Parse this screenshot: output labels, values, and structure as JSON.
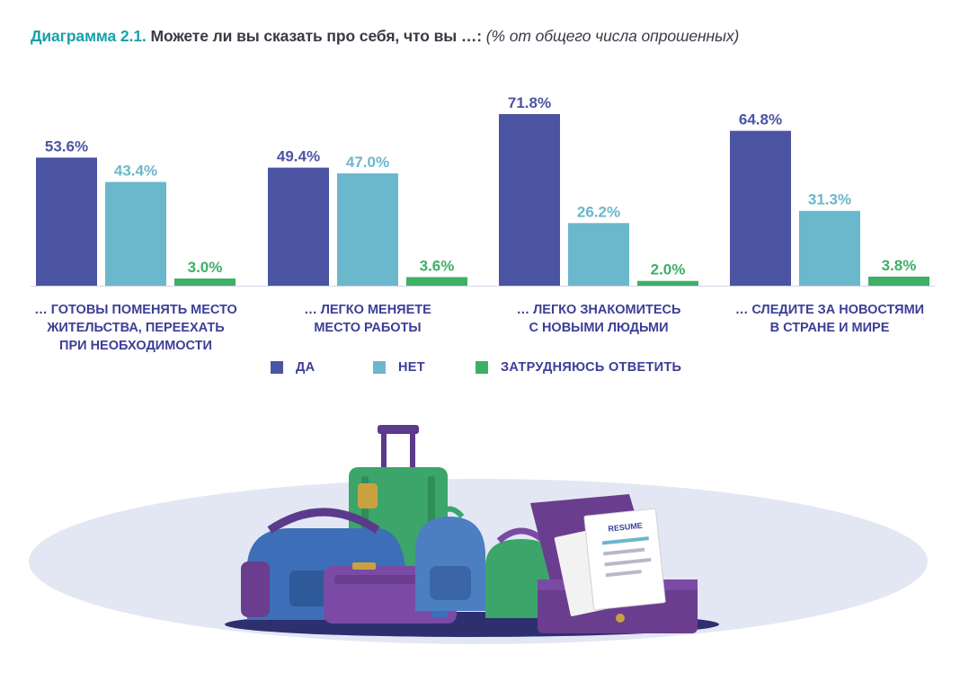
{
  "title": {
    "number": "Диаграмма 2.1.",
    "question": "Можете ли вы сказать про себя, что вы …:",
    "note": "(% от общего числа опрошенных)"
  },
  "colors": {
    "yes": "#4b54a3",
    "no": "#6bb7cc",
    "hard": "#3fae67",
    "label": "#3c3f96"
  },
  "chart_data": {
    "type": "bar",
    "title": "Можете ли вы сказать про себя, что вы …: (% от общего числа опрошенных)",
    "categories": [
      [
        "… ГОТОВЫ ПОМЕНЯТЬ МЕСТО",
        "ЖИТЕЛЬСТВА, ПЕРЕЕХАТЬ",
        "ПРИ НЕОБХОДИМОСТИ"
      ],
      [
        "… ЛЕГКО МЕНЯЕТЕ",
        "МЕСТО РАБОТЫ"
      ],
      [
        "… ЛЕГКО ЗНАКОМИТЕСЬ",
        "С НОВЫМИ ЛЮДЬМИ"
      ],
      [
        "… СЛЕДИТЕ ЗА НОВОСТЯМИ",
        "В СТРАНЕ И МИРЕ"
      ]
    ],
    "series": [
      {
        "name": "ДА",
        "color": "#4b54a3",
        "values": [
          53.6,
          49.4,
          71.8,
          64.8
        ],
        "labels": [
          "53.6%",
          "49.4%",
          "71.8%",
          "64.8%"
        ]
      },
      {
        "name": "НЕТ",
        "color": "#6bb7cc",
        "values": [
          43.4,
          47.0,
          26.2,
          31.3
        ],
        "labels": [
          "43.4%",
          "47.0%",
          "26.2%",
          "31.3%"
        ]
      },
      {
        "name": "ЗАТРУДНЯЮСЬ ОТВЕТИТЬ",
        "color": "#3fae67",
        "values": [
          3.0,
          3.6,
          2.0,
          3.8
        ],
        "labels": [
          "3.0%",
          "3.6%",
          "2.0%",
          "3.8%"
        ]
      }
    ],
    "ylim": [
      0,
      100
    ],
    "legend": "bottom",
    "grid": false
  },
  "illustration": {
    "name": "luggage-illustration",
    "resume_label": "RESUME"
  }
}
